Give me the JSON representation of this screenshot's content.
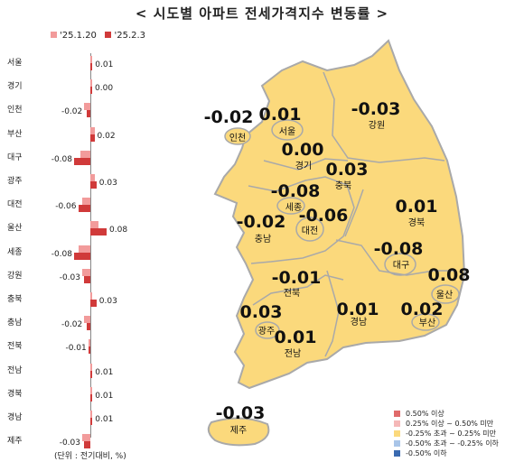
{
  "title": "< 시도별 아파트 전세가격지수 변동률 >",
  "legend_top": {
    "prev_label": "'25.1.20",
    "curr_label": "'25.2.3",
    "prev_color": "#f29b9b",
    "curr_color": "#d03a3a"
  },
  "bar_chart": {
    "regions": [
      {
        "name": "서울",
        "prev": 0.0,
        "curr": 0.01,
        "label": "0.01"
      },
      {
        "name": "경기",
        "prev": 0.0,
        "curr": 0.0,
        "label": "0.00"
      },
      {
        "name": "인천",
        "prev": -0.03,
        "curr": -0.02,
        "label": "-0.02"
      },
      {
        "name": "부산",
        "prev": 0.02,
        "curr": 0.02,
        "label": "0.02"
      },
      {
        "name": "대구",
        "prev": -0.05,
        "curr": -0.08,
        "label": "-0.08"
      },
      {
        "name": "광주",
        "prev": 0.02,
        "curr": 0.03,
        "label": "0.03"
      },
      {
        "name": "대전",
        "prev": -0.04,
        "curr": -0.06,
        "label": "-0.06"
      },
      {
        "name": "울산",
        "prev": 0.04,
        "curr": 0.08,
        "label": "0.08"
      },
      {
        "name": "세종",
        "prev": -0.06,
        "curr": -0.08,
        "label": "-0.08"
      },
      {
        "name": "강원",
        "prev": -0.04,
        "curr": -0.03,
        "label": "-0.03"
      },
      {
        "name": "충북",
        "prev": 0.01,
        "curr": 0.03,
        "label": "0.03"
      },
      {
        "name": "충남",
        "prev": -0.03,
        "curr": -0.02,
        "label": "-0.02"
      },
      {
        "name": "전북",
        "prev": -0.01,
        "curr": -0.01,
        "label": "-0.01"
      },
      {
        "name": "전남",
        "prev": 0.0,
        "curr": 0.01,
        "label": "0.01"
      },
      {
        "name": "경북",
        "prev": 0.0,
        "curr": 0.01,
        "label": "0.01"
      },
      {
        "name": "경남",
        "prev": 0.0,
        "curr": 0.01,
        "label": "0.01"
      },
      {
        "name": "제주",
        "prev": -0.04,
        "curr": -0.03,
        "label": "-0.03"
      }
    ],
    "unit_note": "(단위 : 전기대비, %)"
  },
  "map": {
    "fill_color": "#fbd97c",
    "border_color": "#a9a9a9",
    "regions": [
      {
        "id": "incheon",
        "name": "인천",
        "value": "-0.02"
      },
      {
        "id": "seoul",
        "name": "서울",
        "value": "0.01"
      },
      {
        "id": "gangwon",
        "name": "강원",
        "value": "-0.03"
      },
      {
        "id": "gyeonggi",
        "name": "경기",
        "value": "0.00"
      },
      {
        "id": "chungbuk",
        "name": "충북",
        "value": "0.03"
      },
      {
        "id": "sejong",
        "name": "세종",
        "value": "-0.08"
      },
      {
        "id": "gyeongbuk",
        "name": "경북",
        "value": "0.01"
      },
      {
        "id": "daejeon",
        "name": "대전",
        "value": "-0.06"
      },
      {
        "id": "chungnam",
        "name": "충남",
        "value": "-0.02"
      },
      {
        "id": "daegu",
        "name": "대구",
        "value": "-0.08"
      },
      {
        "id": "ulsan",
        "name": "울산",
        "value": "0.08"
      },
      {
        "id": "jeonbuk",
        "name": "전북",
        "value": "-0.01"
      },
      {
        "id": "gwangju",
        "name": "광주",
        "value": "0.03"
      },
      {
        "id": "gyeongnam",
        "name": "경남",
        "value": "0.01"
      },
      {
        "id": "busan",
        "name": "부산",
        "value": "0.02"
      },
      {
        "id": "jeonnam",
        "name": "전남",
        "value": "0.01"
      },
      {
        "id": "jeju",
        "name": "제주",
        "value": "-0.03"
      }
    ]
  },
  "legend_bottom": [
    {
      "label": "0.50% 이상",
      "color": "#e06a6a"
    },
    {
      "label": "0.25% 이상 ~ 0.50% 미만",
      "color": "#f5b8b8"
    },
    {
      "label": "-0.25% 초과 ~ 0.25% 미만",
      "color": "#fbd97c"
    },
    {
      "label": "-0.50% 초과 ~ -0.25% 이하",
      "color": "#a9c5e8"
    },
    {
      "label": "-0.50% 이하",
      "color": "#3a6ab0"
    }
  ]
}
